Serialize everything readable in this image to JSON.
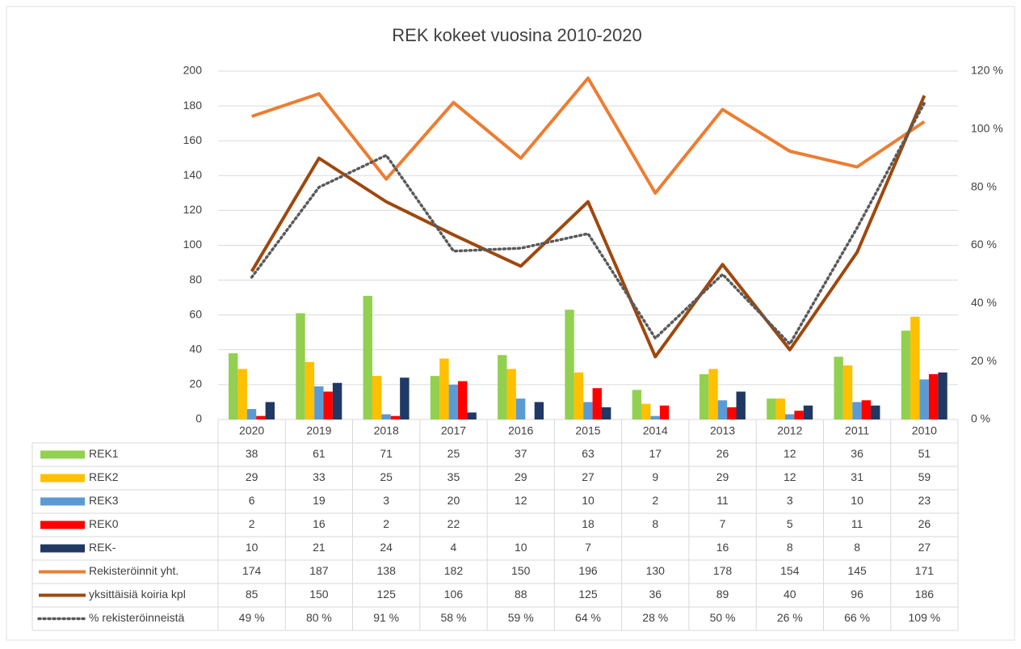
{
  "chart_data": {
    "type": "combo",
    "title": "REK kokeet vuosina 2010-2020",
    "categories": [
      "2020",
      "2019",
      "2018",
      "2017",
      "2016",
      "2015",
      "2014",
      "2013",
      "2012",
      "2011",
      "2010"
    ],
    "ylim": [
      0,
      200
    ],
    "yticks": [
      0,
      20,
      40,
      60,
      80,
      100,
      120,
      140,
      160,
      180,
      200
    ],
    "y2lim": [
      0,
      120
    ],
    "y2ticks": [
      {
        "value": 0,
        "label": "0 %"
      },
      {
        "value": 20,
        "label": "20 %"
      },
      {
        "value": 40,
        "label": "40 %"
      },
      {
        "value": 60,
        "label": "60 %"
      },
      {
        "value": 80,
        "label": "80 %"
      },
      {
        "value": 100,
        "label": "100 %"
      },
      {
        "value": 120,
        "label": "120 %"
      }
    ],
    "grid": true,
    "series": [
      {
        "name": "REK1",
        "type": "bar",
        "color": "#92d050",
        "values": [
          38,
          61,
          71,
          25,
          37,
          63,
          17,
          26,
          12,
          36,
          51
        ]
      },
      {
        "name": "REK2",
        "type": "bar",
        "color": "#ffc000",
        "values": [
          29,
          33,
          25,
          35,
          29,
          27,
          9,
          29,
          12,
          31,
          59
        ]
      },
      {
        "name": "REK3",
        "type": "bar",
        "color": "#5b9bd5",
        "values": [
          6,
          19,
          3,
          20,
          12,
          10,
          2,
          11,
          3,
          10,
          23
        ]
      },
      {
        "name": "REK0",
        "type": "bar",
        "color": "#ff0000",
        "values": [
          2,
          16,
          2,
          22,
          null,
          18,
          8,
          7,
          5,
          11,
          26
        ]
      },
      {
        "name": "REK-",
        "type": "bar",
        "color": "#203864",
        "values": [
          10,
          21,
          24,
          4,
          10,
          7,
          null,
          16,
          8,
          8,
          27
        ]
      },
      {
        "name": "Rekisteröinnit yht.",
        "type": "line",
        "color": "#ed7d31",
        "values": [
          174,
          187,
          138,
          182,
          150,
          196,
          130,
          178,
          154,
          145,
          171
        ]
      },
      {
        "name": "yksittäisiä koiria kpl",
        "type": "line",
        "color": "#9e480e",
        "values": [
          85,
          150,
          125,
          106,
          88,
          125,
          36,
          89,
          40,
          96,
          186
        ]
      },
      {
        "name": "% rekisteröinneistä",
        "type": "line",
        "dash": "dotted",
        "axis": "y2",
        "color": "#595959",
        "values": [
          49,
          80,
          91,
          58,
          59,
          64,
          28,
          50,
          26,
          66,
          109
        ],
        "value_labels": [
          "49 %",
          "80 %",
          "91 %",
          "58 %",
          "59 %",
          "64 %",
          "28 %",
          "50 %",
          "26 %",
          "66 %",
          "109 %"
        ]
      }
    ]
  }
}
